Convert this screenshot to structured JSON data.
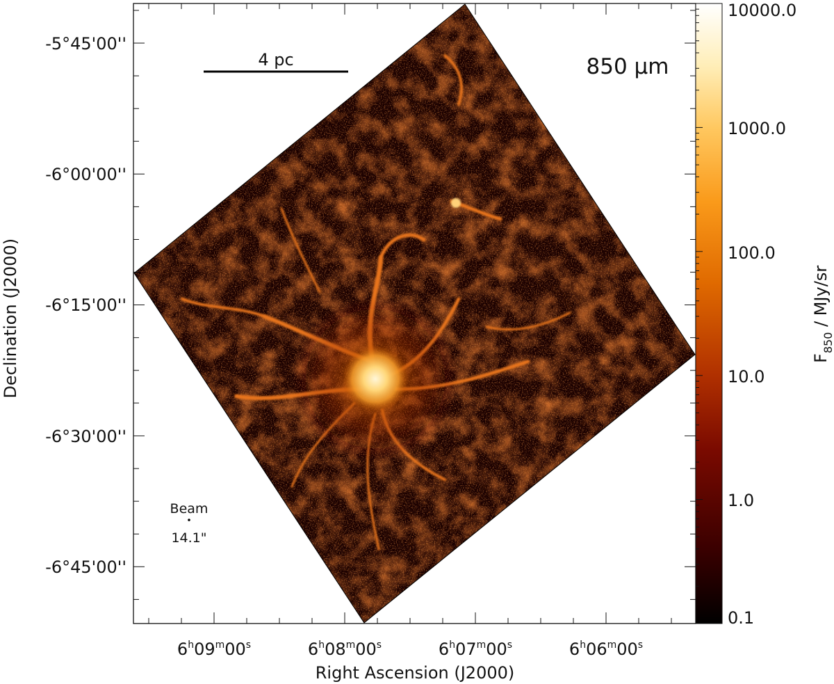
{
  "chart_data": {
    "type": "heatmap",
    "title": "850 µm",
    "xlabel": "Right Ascension (J2000)",
    "ylabel": "Declination (J2000)",
    "x_ticks": [
      {
        "h": "6",
        "m": "09",
        "s": "00"
      },
      {
        "h": "6",
        "m": "08",
        "s": "00"
      },
      {
        "h": "6",
        "m": "07",
        "s": "00"
      },
      {
        "h": "6",
        "m": "06",
        "s": "00"
      }
    ],
    "y_ticks": [
      "-5°45'00''",
      "-6°00'00''",
      "-6°15'00''",
      "-6°30'00''",
      "-6°45'00''"
    ],
    "colorbar": {
      "label_main": "F",
      "label_sub": "850",
      "label_rest": " / MJy/sr",
      "scale": "log",
      "range": [
        0.1,
        10000.0
      ],
      "ticks": [
        "10000.0",
        "1000.0",
        "100.0",
        "10.0",
        "1.0",
        "0.1"
      ],
      "colormap": [
        "#000000",
        "#3a0000",
        "#7a0a00",
        "#b03000",
        "#e06a00",
        "#fa9a1a",
        "#ffc860",
        "#ffeeb8",
        "#ffffff"
      ]
    },
    "scalebar_label": "4 pc",
    "beam": {
      "label": "Beam",
      "size_label": "14.1\""
    },
    "grid": false,
    "legend": "none"
  }
}
